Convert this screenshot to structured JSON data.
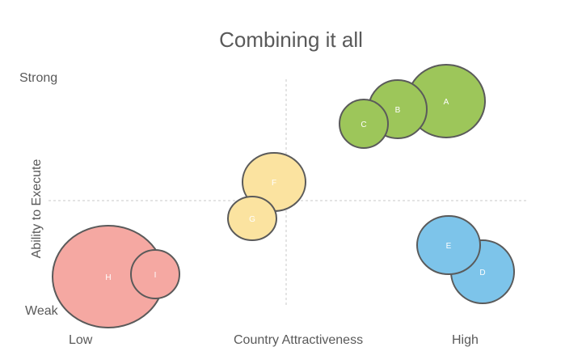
{
  "title": "Combining it all",
  "axes": {
    "y_title": "Ability to Execute",
    "y_high": "Strong",
    "y_low": "Weak",
    "x_title": "Country Attractiveness",
    "x_low": "Low",
    "x_high": "High"
  },
  "colors": {
    "green": "#9dc65a",
    "yellow": "#fbe3a0",
    "red": "#f5a8a2",
    "blue": "#7dc4ea",
    "outline": "#5a5a5a",
    "quadrant_line": "#c8c8c8"
  },
  "bubbles": [
    {
      "label": "A",
      "group": "green"
    },
    {
      "label": "B",
      "group": "green"
    },
    {
      "label": "C",
      "group": "green"
    },
    {
      "label": "F",
      "group": "yellow"
    },
    {
      "label": "G",
      "group": "yellow"
    },
    {
      "label": "H",
      "group": "red"
    },
    {
      "label": "I",
      "group": "red"
    },
    {
      "label": "D",
      "group": "blue"
    },
    {
      "label": "E",
      "group": "blue"
    }
  ]
}
